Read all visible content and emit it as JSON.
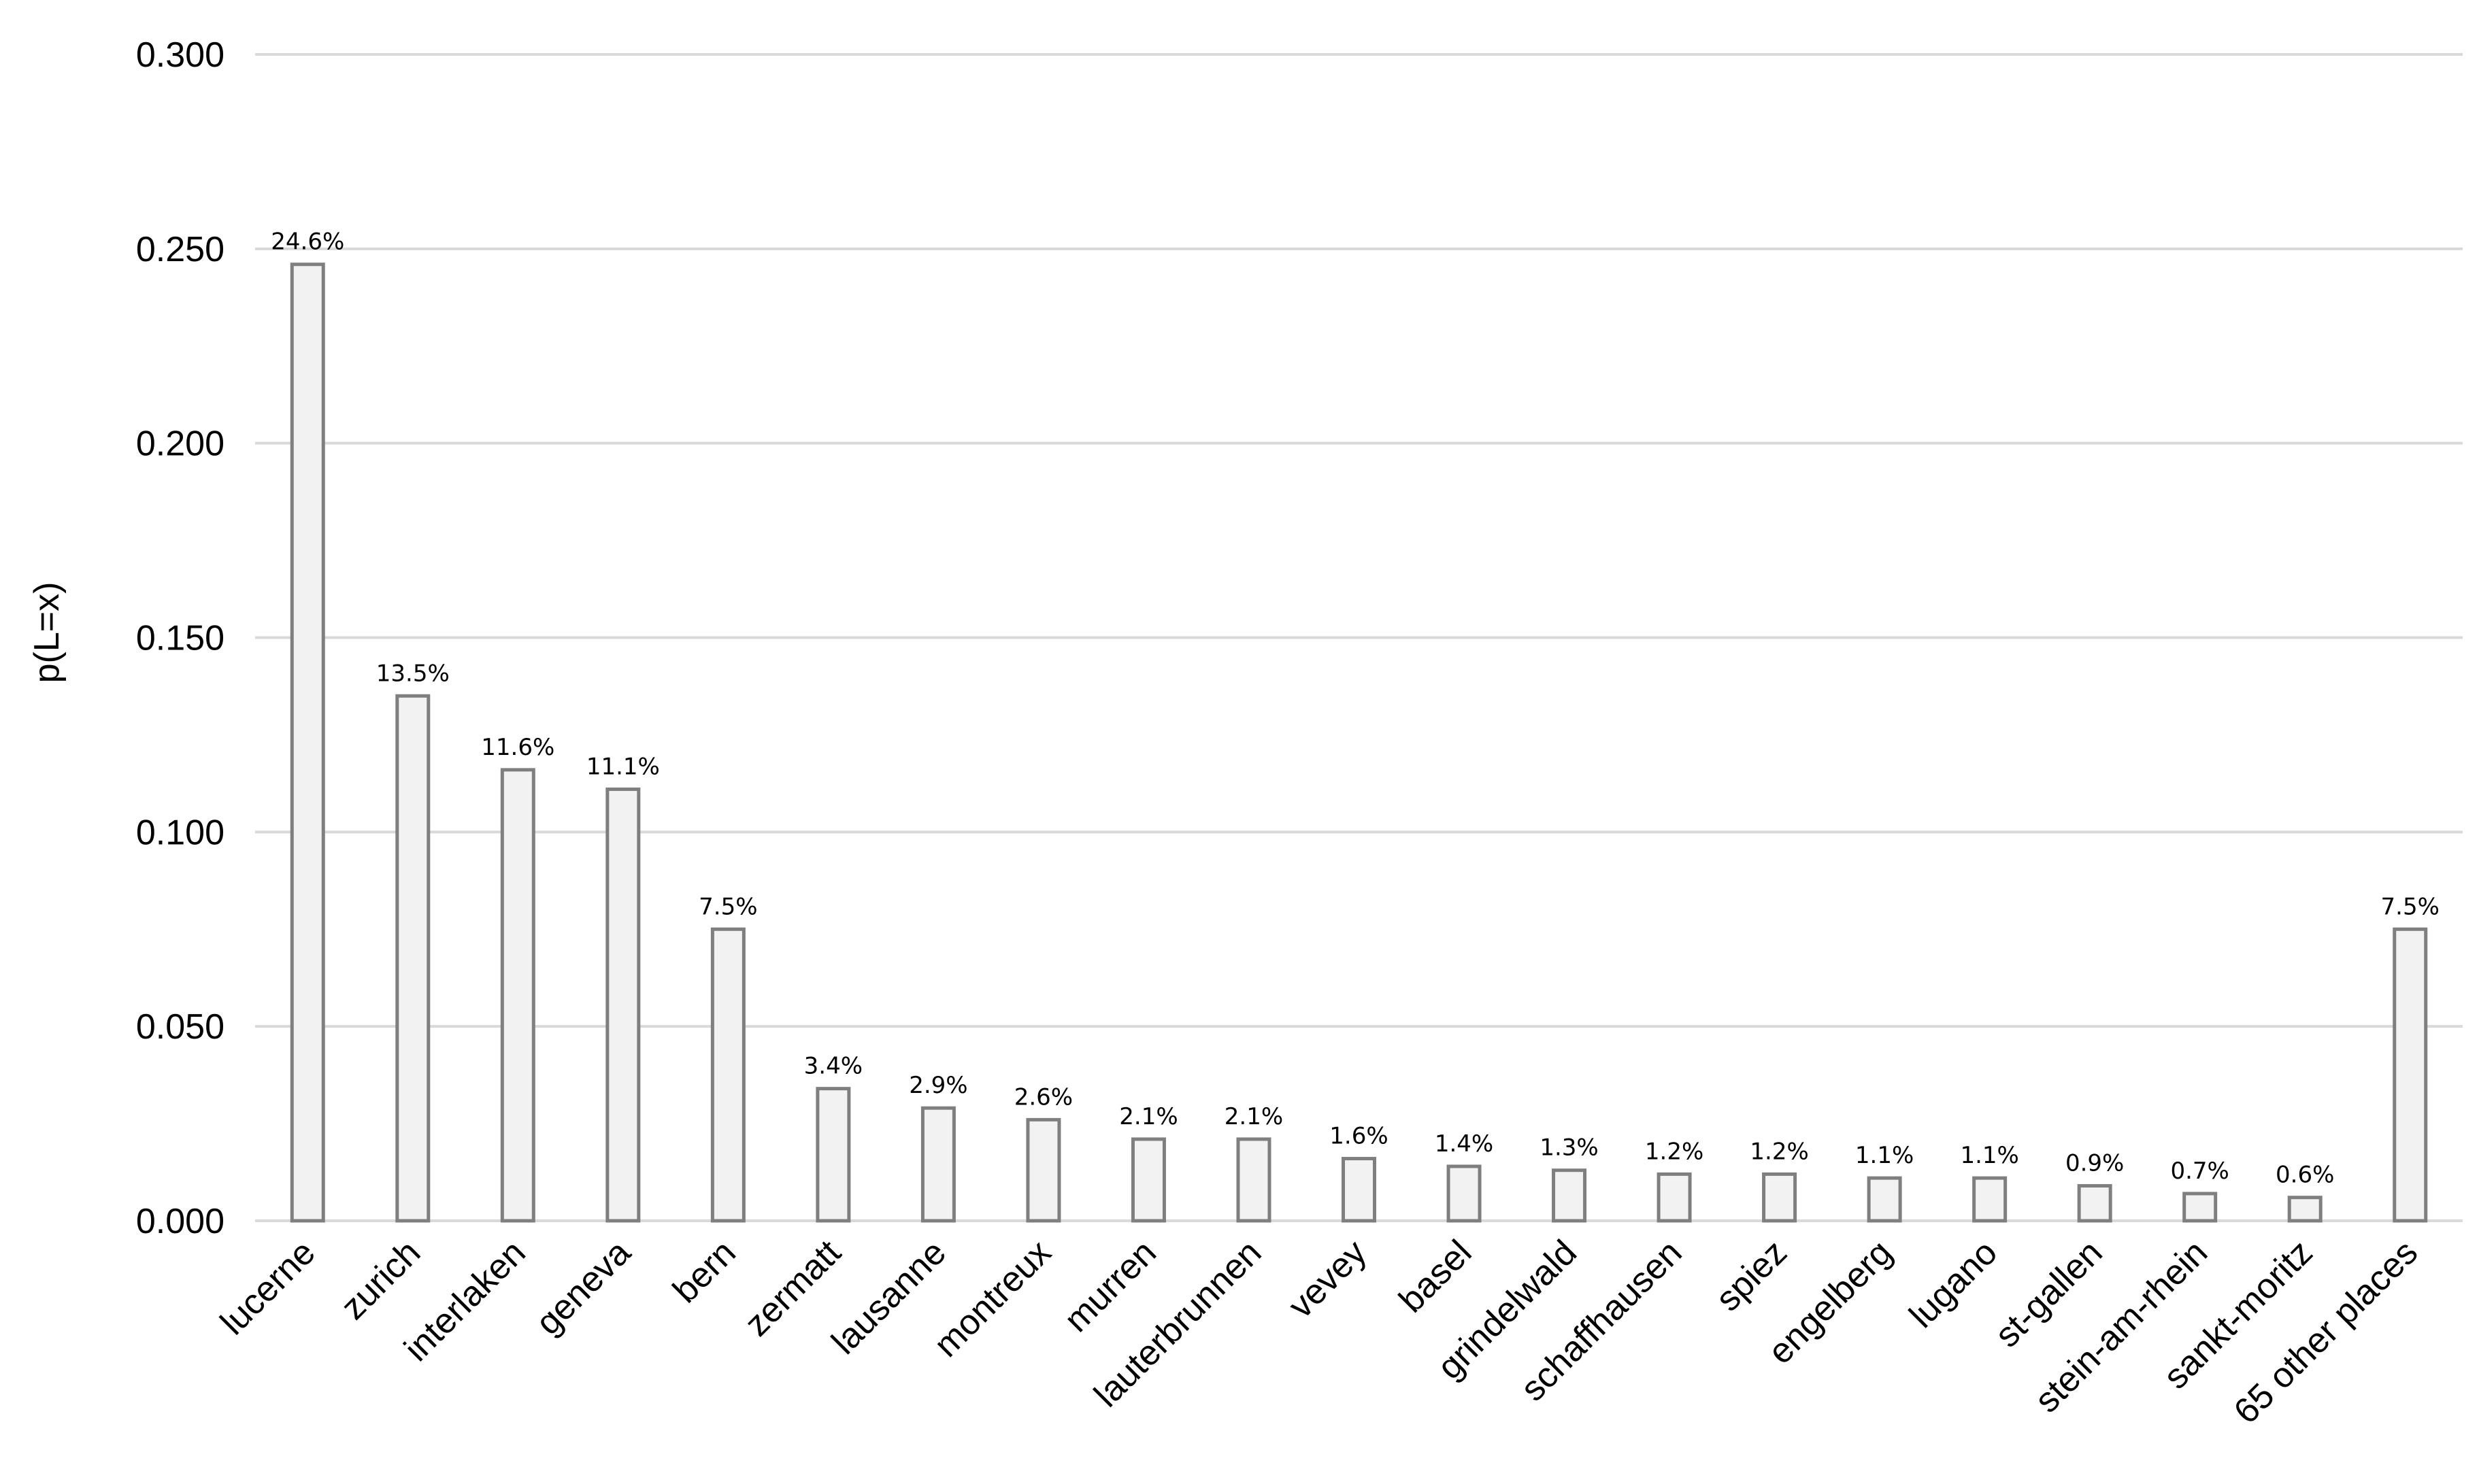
{
  "chart_data": {
    "type": "bar",
    "title": "",
    "xlabel": "",
    "ylabel": "p(L=x)",
    "ylim": [
      0,
      0.3
    ],
    "yticks": [
      "0.000",
      "0.050",
      "0.100",
      "0.150",
      "0.200",
      "0.250",
      "0.300"
    ],
    "grid": true,
    "legend": "none",
    "categories": [
      "lucerne",
      "zurich",
      "interlaken",
      "geneva",
      "bern",
      "zermatt",
      "lausanne",
      "montreux",
      "murren",
      "lauterbrunnen",
      "vevey",
      "basel",
      "grindelwald",
      "schaffhausen",
      "spiez",
      "engelberg",
      "lugano",
      "st-gallen",
      "stein-am-rhein",
      "sankt-moritz",
      "65 other places"
    ],
    "values": [
      0.246,
      0.135,
      0.116,
      0.111,
      0.075,
      0.034,
      0.029,
      0.026,
      0.021,
      0.021,
      0.016,
      0.014,
      0.013,
      0.012,
      0.012,
      0.011,
      0.011,
      0.009,
      0.007,
      0.006,
      0.075
    ],
    "data_labels": [
      "24.6%",
      "13.5%",
      "11.6%",
      "11.1%",
      "7.5%",
      "3.4%",
      "2.9%",
      "2.6%",
      "2.1%",
      "2.1%",
      "1.6%",
      "1.4%",
      "1.3%",
      "1.2%",
      "1.2%",
      "1.1%",
      "1.1%",
      "0.9%",
      "0.7%",
      "0.6%",
      "7.5%"
    ],
    "colors": {
      "bar_fill": "#f2f2f2",
      "bar_stroke": "#7f7f7f",
      "grid": "#d9d9d9"
    }
  }
}
